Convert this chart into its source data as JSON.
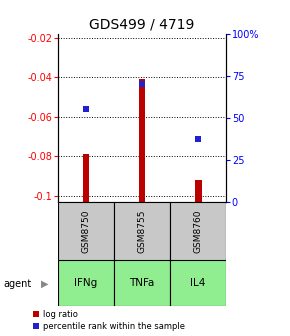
{
  "title": "GDS499 / 4719",
  "samples": [
    "GSM8750",
    "GSM8755",
    "GSM8760"
  ],
  "agents": [
    "IFNg",
    "TNFa",
    "IL4"
  ],
  "log_ratios": [
    -0.079,
    -0.041,
    -0.092
  ],
  "percentile_ranks": [
    55.0,
    70.0,
    37.0
  ],
  "ylim_left": [
    -0.103,
    -0.018
  ],
  "ylim_right": [
    0,
    100
  ],
  "yticks_left": [
    -0.1,
    -0.08,
    -0.06,
    -0.04,
    -0.02
  ],
  "yticks_right": [
    0,
    25,
    50,
    75,
    100
  ],
  "ytick_labels_left": [
    "-0.1",
    "-0.08",
    "-0.06",
    "-0.04",
    "-0.02"
  ],
  "ytick_labels_right": [
    "0",
    "25",
    "50",
    "75",
    "100%"
  ],
  "bar_bottom": -0.103,
  "bar_color": "#bb0000",
  "dot_color": "#2222cc",
  "dot_size": 4,
  "bar_width": 0.12,
  "gray_box_color": "#c8c8c8",
  "green_box_color": "#90ee90",
  "agent_label": "agent",
  "legend_log_ratio": "log ratio",
  "legend_percentile": "percentile rank within the sample",
  "title_fontsize": 10,
  "tick_fontsize": 7,
  "agent_fontsize": 7.5,
  "gsm_fontsize": 6.5,
  "legend_fontsize": 6
}
